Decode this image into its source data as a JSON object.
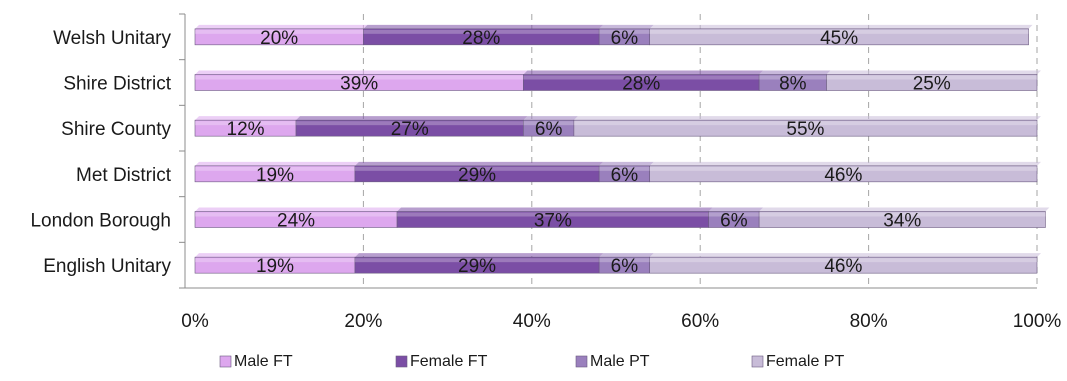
{
  "chart_data": {
    "type": "bar",
    "orientation": "horizontal",
    "stacked": "percent",
    "categories": [
      "Welsh Unitary",
      "Shire District",
      "Shire County",
      "Met District",
      "London Borough",
      "English Unitary"
    ],
    "series": [
      {
        "name": "Male FT",
        "color": "#dda7ee",
        "values": [
          20,
          39,
          12,
          19,
          24,
          19
        ],
        "labels": [
          "20%",
          "39%",
          "12%",
          "19%",
          "24%",
          "19%"
        ]
      },
      {
        "name": "Female FT",
        "color": "#7b4ea5",
        "values": [
          28,
          28,
          27,
          29,
          37,
          29
        ],
        "labels": [
          "28%",
          "28%",
          "27%",
          "29%",
          "37%",
          "29%"
        ]
      },
      {
        "name": "Male PT",
        "color": "#9a80bd",
        "values": [
          6,
          8,
          6,
          6,
          6,
          6
        ],
        "labels": [
          "6%",
          "8%",
          "6%",
          "6%",
          "6%",
          "6%"
        ]
      },
      {
        "name": "Female PT",
        "color": "#c8bcd8",
        "values": [
          45,
          25,
          55,
          46,
          34,
          46
        ],
        "labels": [
          "45%",
          "25%",
          "55%",
          "46%",
          "34%",
          "46%"
        ]
      }
    ],
    "xlim": [
      0,
      100
    ],
    "xticks": [
      0,
      20,
      40,
      60,
      80,
      100
    ],
    "xtick_labels": [
      "0%",
      "20%",
      "40%",
      "60%",
      "80%",
      "100%"
    ],
    "grid": true,
    "legend_position": "bottom"
  }
}
